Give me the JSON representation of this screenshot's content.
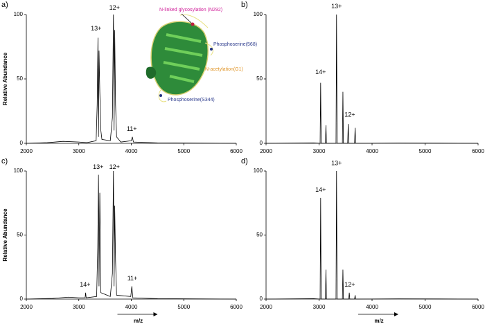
{
  "chart_data": [
    {
      "type": "line",
      "panel_label": "a)",
      "y_label": "Relative Abundance",
      "color": "#000000",
      "x": [
        2000,
        2400,
        2700,
        3000,
        3150,
        3330,
        3350,
        3365,
        3375,
        3385,
        3400,
        3420,
        3440,
        3600,
        3640,
        3660,
        3672,
        3684,
        3700,
        3720,
        3800,
        4000,
        4020,
        4040,
        4500,
        6000
      ],
      "values": [
        0,
        0.5,
        1.5,
        1,
        0.5,
        2,
        30,
        82,
        5,
        72,
        40,
        10,
        3,
        2,
        20,
        100,
        10,
        88,
        30,
        5,
        1,
        2,
        5,
        1,
        0.3,
        0
      ],
      "xlim": [
        2000,
        6000
      ],
      "ylim": [
        0,
        100
      ],
      "xticks": [
        2000,
        3000,
        4000,
        5000,
        6000
      ],
      "yticks": [
        0,
        50,
        100
      ],
      "peak_labels": [
        "13+",
        "12+",
        "11+"
      ]
    },
    {
      "type": "line",
      "panel_label": "b)",
      "color": "#000000",
      "x": [
        2000,
        2900,
        3020,
        3030,
        3040,
        3120,
        3130,
        3140,
        3320,
        3330,
        3340,
        3440,
        3450,
        3460,
        3540,
        3550,
        3560,
        3670,
        3680,
        3690,
        4500,
        6000
      ],
      "values": [
        0,
        0.3,
        0,
        47,
        0,
        0,
        14,
        0,
        0,
        100,
        0,
        0,
        40,
        0,
        0,
        15,
        0,
        0,
        12,
        0,
        0.2,
        0
      ],
      "xlim": [
        2000,
        6000
      ],
      "ylim": [
        0,
        100
      ],
      "xticks": [
        2000,
        3000,
        4000,
        5000,
        6000
      ],
      "yticks": [
        0,
        50,
        100
      ],
      "peak_labels": [
        "14+",
        "13+",
        "12+"
      ]
    },
    {
      "type": "line",
      "panel_label": "c)",
      "y_label": "Relative Abundance",
      "x_label": "m/z",
      "color": "#000000",
      "x": [
        2000,
        2500,
        2800,
        3000,
        3120,
        3130,
        3140,
        3340,
        3360,
        3375,
        3385,
        3400,
        3420,
        3600,
        3640,
        3660,
        3672,
        3684,
        3700,
        3720,
        3990,
        4010,
        4030,
        4500,
        6000
      ],
      "values": [
        0,
        0.5,
        1.5,
        1,
        1,
        5,
        1,
        2,
        40,
        97,
        10,
        83,
        5,
        2,
        20,
        100,
        10,
        73,
        30,
        3,
        2,
        10,
        1,
        0.3,
        0
      ],
      "xlim": [
        2000,
        6000
      ],
      "ylim": [
        0,
        100
      ],
      "xticks": [
        2000,
        3000,
        4000,
        5000,
        6000
      ],
      "yticks": [
        0,
        50,
        100
      ],
      "peak_labels": [
        "14+",
        "13+",
        "12+",
        "11+"
      ]
    },
    {
      "type": "line",
      "panel_label": "d)",
      "x_label": "m/z",
      "color": "#000000",
      "x": [
        2000,
        2900,
        3020,
        3030,
        3040,
        3120,
        3130,
        3140,
        3320,
        3330,
        3340,
        3440,
        3450,
        3460,
        3560,
        3570,
        3580,
        3670,
        3680,
        3690,
        4500,
        6000
      ],
      "values": [
        0,
        0.3,
        0,
        79,
        0,
        0,
        23,
        0,
        0,
        100,
        0,
        0,
        23,
        0,
        0,
        5,
        0,
        0,
        3,
        0,
        0.2,
        0
      ],
      "xlim": [
        2000,
        6000
      ],
      "ylim": [
        0,
        100
      ],
      "xticks": [
        2000,
        3000,
        4000,
        5000,
        6000
      ],
      "yticks": [
        0,
        50,
        100
      ],
      "peak_labels": [
        "14+",
        "13+",
        "12+"
      ]
    }
  ],
  "structure": {
    "labels": [
      "N-linked glycosylation (N292)",
      "Phosphoserine(568)",
      "N-acetylation(G1)",
      "Phosphoserine(S344)"
    ]
  }
}
